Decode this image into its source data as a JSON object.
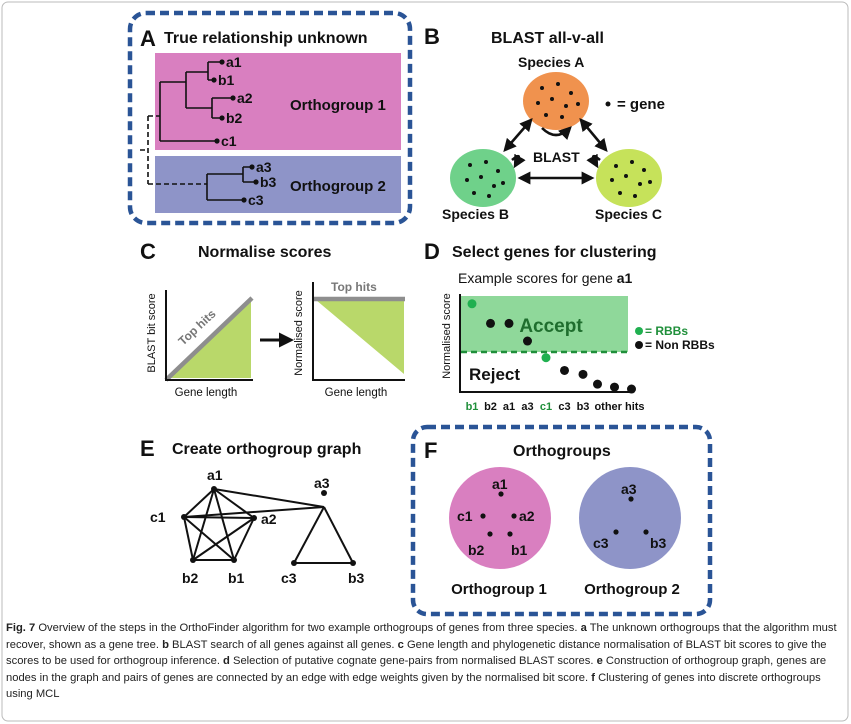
{
  "panel_a": {
    "letter": "A",
    "title": "True relationship unknown",
    "genes_group1": [
      "a1",
      "b1",
      "a2",
      "b2",
      "c1"
    ],
    "genes_group2": [
      "a3",
      "b3",
      "c3"
    ],
    "group1_label": "Orthogroup 1",
    "group2_label": "Orthogroup 2"
  },
  "panel_b": {
    "letter": "B",
    "title": "BLAST all-v-all",
    "species_a": "Species A",
    "species_b": "Species B",
    "species_c": "Species C",
    "legend_label": "= gene",
    "blast_label": "BLAST"
  },
  "panel_c": {
    "letter": "C",
    "title": "Normalise scores",
    "left_ylabel": "BLAST bit score",
    "left_xlabel": "Gene length",
    "left_hits_label": "Top hits",
    "right_ylabel": "Normalised score",
    "right_xlabel": "Gene length",
    "right_hits_label": "Top hits"
  },
  "panel_d": {
    "letter": "D",
    "title": "Select genes for clustering",
    "subtitle_prefix": "Example scores for gene ",
    "subtitle_gene": "a1",
    "ylabel": "Normalised score",
    "accept_label": "Accept",
    "reject_label": "Reject",
    "legend_rbb": "= RBBs",
    "legend_nonrbb": "= Non RBBs",
    "x_labels": [
      "b1",
      "b2",
      "a1",
      "a3",
      "c1",
      "c3",
      "b3",
      "other hits"
    ]
  },
  "chart_data": {
    "type": "scatter",
    "title": "Select genes for clustering",
    "subtitle": "Example scores for gene a1",
    "ylabel": "Normalised score",
    "xlabel": "",
    "x_categories": [
      "b1",
      "b2",
      "a1",
      "a3",
      "c1",
      "c3",
      "b3",
      "other hits"
    ],
    "ylim": [
      0,
      1
    ],
    "threshold": 0.35,
    "series": [
      {
        "name": "RBBs",
        "color": "#20b050",
        "points": [
          {
            "x": "b1",
            "y": 0.9
          },
          {
            "x": "c1",
            "y": 0.35
          }
        ]
      },
      {
        "name": "Non RBBs",
        "color": "#111111",
        "points": [
          {
            "x": "b2",
            "y": 0.7
          },
          {
            "x": "a1",
            "y": 0.7
          },
          {
            "x": "a3",
            "y": 0.52
          },
          {
            "x": "c3",
            "y": 0.22
          },
          {
            "x": "b3",
            "y": 0.18
          },
          {
            "x": "other hits",
            "y": 0.08
          },
          {
            "x": "other hits",
            "y": 0.05
          },
          {
            "x": "other hits",
            "y": 0.03
          }
        ]
      }
    ]
  },
  "panel_e": {
    "letter": "E",
    "title": "Create orthogroup graph",
    "nodes": [
      "a1",
      "c1",
      "a2",
      "b2",
      "b1",
      "a3",
      "c3",
      "b3"
    ]
  },
  "panel_f": {
    "letter": "F",
    "title": "Orthogroups",
    "group1_genes": [
      "a1",
      "c1",
      "a2",
      "b2",
      "b1"
    ],
    "group2_genes": [
      "a3",
      "c3",
      "b3"
    ],
    "group1_label": "Orthogroup 1",
    "group2_label": "Orthogroup 2"
  },
  "caption": {
    "fig_label": "Fig. 7",
    "intro": " Overview of the steps in the OrthoFinder algorithm for two example orthogroups of genes from three species. ",
    "a_letter": "a",
    "a_text": " The unknown orthogroups that the algorithm must recover, shown as a gene tree. ",
    "b_letter": "b",
    "b_text": " BLAST search of all genes against all genes. ",
    "c_letter": "c",
    "c_text": " Gene length and phylogenetic distance normalisation of BLAST bit scores to give the scores to be used for orthogroup inference. ",
    "d_letter": "d",
    "d_text": " Selection of putative cognate gene-pairs from normalised BLAST scores. ",
    "e_letter": "e",
    "e_text": " Construction of orthogroup graph, genes are nodes in the graph and pairs of genes are connected by an edge with edge weights given by the normalised bit score. ",
    "f_letter": "f",
    "f_text": " Clustering of genes into discrete orthogroups using MCL"
  },
  "colors": {
    "frame_blue": "#2a5496",
    "orthogroup1": "#d97fc0",
    "orthogroup2": "#8e94c8",
    "species_a": "#f0924e",
    "species_b": "#6fd18a",
    "species_c": "#c6e25a",
    "triangle_green": "#b9d86a",
    "accept_green": "#8fd89a",
    "rbb_green": "#20b050",
    "accept_text": "#1f6e2e"
  }
}
